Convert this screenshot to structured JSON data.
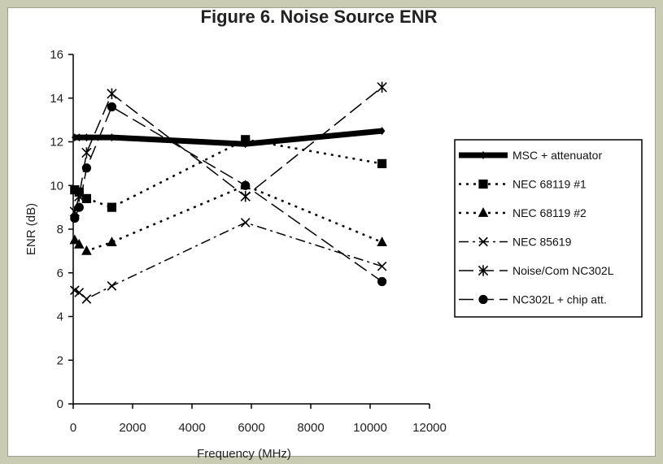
{
  "chart_data": {
    "type": "line",
    "title": "Figure 6. Noise Source ENR",
    "xlabel": "Frequency (MHz)",
    "ylabel": "ENR (dB)",
    "xlim": [
      0,
      12000
    ],
    "ylim": [
      0,
      16
    ],
    "xticks": [
      0,
      2000,
      4000,
      6000,
      8000,
      10000,
      12000
    ],
    "yticks": [
      0,
      2,
      4,
      6,
      8,
      10,
      12,
      14,
      16
    ],
    "grid": false,
    "legend_position": "right",
    "series": [
      {
        "name": "MSC + attenuator",
        "marker": "diamond",
        "dash": "solid",
        "line_width": 7,
        "color": "#000000",
        "points": [
          [
            50,
            12.2
          ],
          [
            200,
            12.2
          ],
          [
            450,
            12.2
          ],
          [
            1300,
            12.2
          ],
          [
            5800,
            11.9
          ],
          [
            10400,
            12.5
          ]
        ]
      },
      {
        "name": "NEC 68119 #1",
        "marker": "square",
        "dash": "dotted",
        "line_width": 2.5,
        "color": "#000000",
        "points": [
          [
            50,
            9.8
          ],
          [
            200,
            9.7
          ],
          [
            450,
            9.4
          ],
          [
            1300,
            9.0
          ],
          [
            5800,
            12.1
          ],
          [
            10400,
            11.0
          ]
        ]
      },
      {
        "name": "NEC 68119 #2",
        "marker": "triangle",
        "dash": "dotted",
        "line_width": 2.5,
        "color": "#000000",
        "points": [
          [
            50,
            7.5
          ],
          [
            200,
            7.3
          ],
          [
            450,
            7.0
          ],
          [
            1300,
            7.4
          ],
          [
            5800,
            10.0
          ],
          [
            10400,
            7.4
          ]
        ]
      },
      {
        "name": "NEC 85619",
        "marker": "x",
        "dash": "dashdot",
        "line_width": 1.5,
        "color": "#000000",
        "points": [
          [
            50,
            5.2
          ],
          [
            200,
            5.1
          ],
          [
            450,
            4.8
          ],
          [
            1300,
            5.4
          ],
          [
            5800,
            8.3
          ],
          [
            10400,
            6.3
          ]
        ]
      },
      {
        "name": "Noise/Com NC302L",
        "marker": "asterisk",
        "dash": "longdash",
        "line_width": 1.5,
        "color": "#000000",
        "points": [
          [
            50,
            8.8
          ],
          [
            200,
            9.5
          ],
          [
            450,
            11.5
          ],
          [
            1300,
            14.2
          ],
          [
            5800,
            9.5
          ],
          [
            10400,
            14.5
          ]
        ]
      },
      {
        "name": "NC302L + chip att.",
        "marker": "circle",
        "dash": "longdash",
        "line_width": 1.5,
        "color": "#000000",
        "points": [
          [
            50,
            8.5
          ],
          [
            200,
            9.0
          ],
          [
            450,
            10.8
          ],
          [
            1300,
            13.6
          ],
          [
            5800,
            10.0
          ],
          [
            10400,
            5.6
          ]
        ]
      }
    ]
  }
}
